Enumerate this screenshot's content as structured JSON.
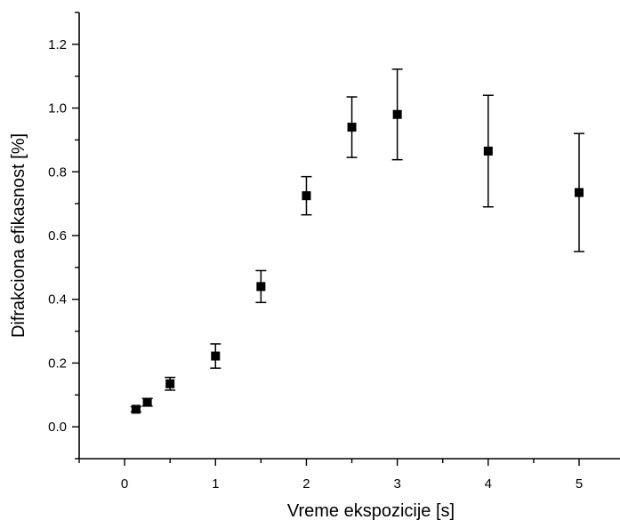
{
  "chart_data": {
    "type": "scatter",
    "xlabel": "Vreme ekspozicije [s]",
    "ylabel": "Difrakciona efikasnost [%]",
    "xlim": [
      -0.5,
      5.45
    ],
    "ylim": [
      -0.1,
      1.3
    ],
    "x_ticks": [
      "0",
      "1",
      "2",
      "3",
      "4",
      "5"
    ],
    "y_ticks": [
      "0.0",
      "0.2",
      "0.4",
      "0.6",
      "0.8",
      "1.0",
      "1.2"
    ],
    "grid": false,
    "legend": "none",
    "marker": "square",
    "marker_color": "#000000",
    "series": [
      {
        "x": [
          0.125,
          0.25,
          0.5,
          1.0,
          1.5,
          2.0,
          2.5,
          3.0,
          4.0,
          5.0
        ],
        "y": [
          0.055,
          0.077,
          0.135,
          0.222,
          0.44,
          0.725,
          0.94,
          0.98,
          0.865,
          0.735
        ],
        "yerr": [
          0.008,
          0.012,
          0.02,
          0.038,
          0.05,
          0.06,
          0.095,
          0.142,
          0.175,
          0.185
        ]
      }
    ]
  }
}
